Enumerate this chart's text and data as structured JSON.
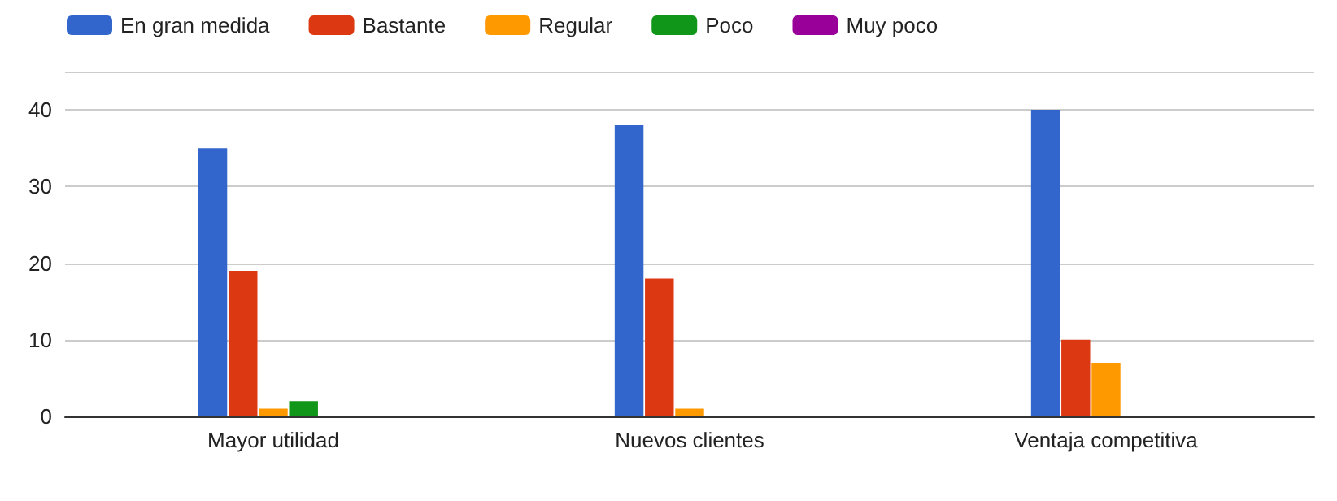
{
  "chart_data": {
    "type": "bar",
    "categories": [
      "Mayor utilidad",
      "Nuevos clientes",
      "Ventaja competitiva"
    ],
    "series": [
      {
        "name": "En gran medida",
        "color": "#3366cc",
        "values": [
          35,
          38,
          40
        ]
      },
      {
        "name": "Bastante",
        "color": "#dc3912",
        "values": [
          19,
          18,
          10
        ]
      },
      {
        "name": "Regular",
        "color": "#ff9900",
        "values": [
          1,
          1,
          7
        ]
      },
      {
        "name": "Poco",
        "color": "#109618",
        "values": [
          2,
          0,
          0
        ]
      },
      {
        "name": "Muy poco",
        "color": "#990099",
        "values": [
          0,
          0,
          0
        ]
      }
    ],
    "ylim": [
      0,
      45
    ],
    "yticks": [
      0,
      10,
      20,
      30,
      40,
      {
        "value": 45,
        "label": null
      }
    ],
    "grid": "y",
    "legend": "top left"
  }
}
